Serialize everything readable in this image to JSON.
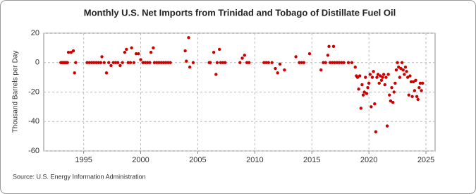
{
  "chart_data": {
    "type": "scatter",
    "title": "Monthly U.S. Net Imports from Trinidad and Tobago of Distillate Fuel Oil",
    "y_label": "Thousand Barrels per Day",
    "source": "Source: U.S. Energy Information Administration",
    "color": "#cc0000",
    "grid": true,
    "xlim": [
      1991.5,
      2025.8
    ],
    "xticks": [
      1995,
      2000,
      2005,
      2010,
      2015,
      2020,
      2025
    ],
    "ylim": [
      -60,
      20
    ],
    "yticks": [
      -60,
      -40,
      -20,
      0,
      20
    ],
    "x": [
      1993.0,
      1993.08,
      1993.17,
      1993.25,
      1993.33,
      1993.42,
      1993.5,
      1993.58,
      1993.67,
      1993.9,
      1994.1,
      1994.2,
      1994.3,
      1995.3,
      1995.5,
      1995.7,
      1995.9,
      1996.1,
      1996.3,
      1996.5,
      1996.6,
      1996.8,
      1997.0,
      1997.2,
      1997.4,
      1997.6,
      1997.8,
      1998.0,
      1998.2,
      1998.4,
      1998.6,
      1998.75,
      1998.9,
      1999.1,
      1999.2,
      1999.4,
      1999.6,
      1999.8,
      2000.0,
      2000.2,
      2000.4,
      2000.6,
      2000.8,
      2000.9,
      2001.1,
      2001.2,
      2001.4,
      2001.6,
      2001.8,
      2002.0,
      2002.2,
      2002.4,
      2002.6,
      2003.9,
      2004.0,
      2004.2,
      2004.3,
      2004.6,
      2006.0,
      2006.1,
      2006.4,
      2006.6,
      2006.7,
      2006.9,
      2007.0,
      2007.2,
      2007.4,
      2008.7,
      2008.9,
      2009.1,
      2009.3,
      2009.5,
      2010.8,
      2011.0,
      2011.2,
      2011.5,
      2011.8,
      2012.0,
      2012.2,
      2012.6,
      2013.6,
      2013.9,
      2014.1,
      2014.3,
      2014.8,
      2015.8,
      2016.0,
      2016.2,
      2016.4,
      2016.5,
      2016.6,
      2016.8,
      2016.9,
      2017.0,
      2017.2,
      2017.4,
      2017.6,
      2017.8,
      2018.2,
      2018.5,
      2018.8,
      2018.9,
      2019.0,
      2019.1,
      2019.2,
      2019.3,
      2019.4,
      2019.5,
      2019.6,
      2019.7,
      2019.8,
      2019.9,
      2020.0,
      2020.1,
      2020.2,
      2020.3,
      2020.4,
      2020.5,
      2020.6,
      2020.7,
      2020.8,
      2020.9,
      2021.0,
      2021.1,
      2021.2,
      2021.3,
      2021.4,
      2021.5,
      2021.6,
      2021.7,
      2021.8,
      2021.9,
      2022.0,
      2022.1,
      2022.2,
      2022.3,
      2022.4,
      2022.5,
      2022.6,
      2022.7,
      2022.8,
      2022.9,
      2023.0,
      2023.1,
      2023.2,
      2023.3,
      2023.4,
      2023.5,
      2023.6,
      2023.7,
      2023.8,
      2023.9,
      2024.0,
      2024.1,
      2024.2,
      2024.3,
      2024.4,
      2024.5,
      2024.6,
      2024.7
    ],
    "values": [
      0,
      0,
      0,
      0,
      0,
      0,
      0,
      0,
      7,
      7,
      8,
      -7,
      0,
      0,
      0,
      0,
      0,
      0,
      0,
      0,
      4,
      0,
      -7,
      0,
      -2,
      0,
      0,
      0,
      -2,
      0,
      7,
      9,
      0,
      0,
      10,
      0,
      6,
      6,
      2,
      0,
      0,
      0,
      0,
      7,
      10,
      0,
      0,
      0,
      0,
      0,
      0,
      0,
      0,
      8,
      1,
      17,
      -3,
      0,
      0,
      0,
      7,
      -8,
      0,
      9,
      0,
      0,
      0,
      0,
      3,
      5,
      0,
      0,
      0,
      0,
      0,
      0,
      -4,
      -7,
      -1,
      -5,
      4,
      0,
      0,
      0,
      6,
      -5,
      0,
      0,
      5,
      11,
      0,
      0,
      11,
      0,
      0,
      0,
      0,
      0,
      0,
      0,
      -3,
      -9,
      -10,
      -18,
      -9,
      -31,
      -15,
      -22,
      -20,
      -10,
      -21,
      -17,
      -14,
      -8,
      -30,
      -10,
      -6,
      -28,
      -47,
      -10,
      -8,
      -14,
      -9,
      -12,
      -10,
      -8,
      -15,
      -10,
      -43,
      -8,
      -22,
      -26,
      -17,
      -27,
      -20,
      -14,
      -5,
      0,
      -3,
      -10,
      -4,
      0,
      -5,
      -8,
      -3,
      -6,
      -10,
      -22,
      -9,
      -13,
      -23,
      -13,
      -19,
      -12,
      -23,
      -25,
      -17,
      -14,
      -19,
      -14
    ]
  }
}
